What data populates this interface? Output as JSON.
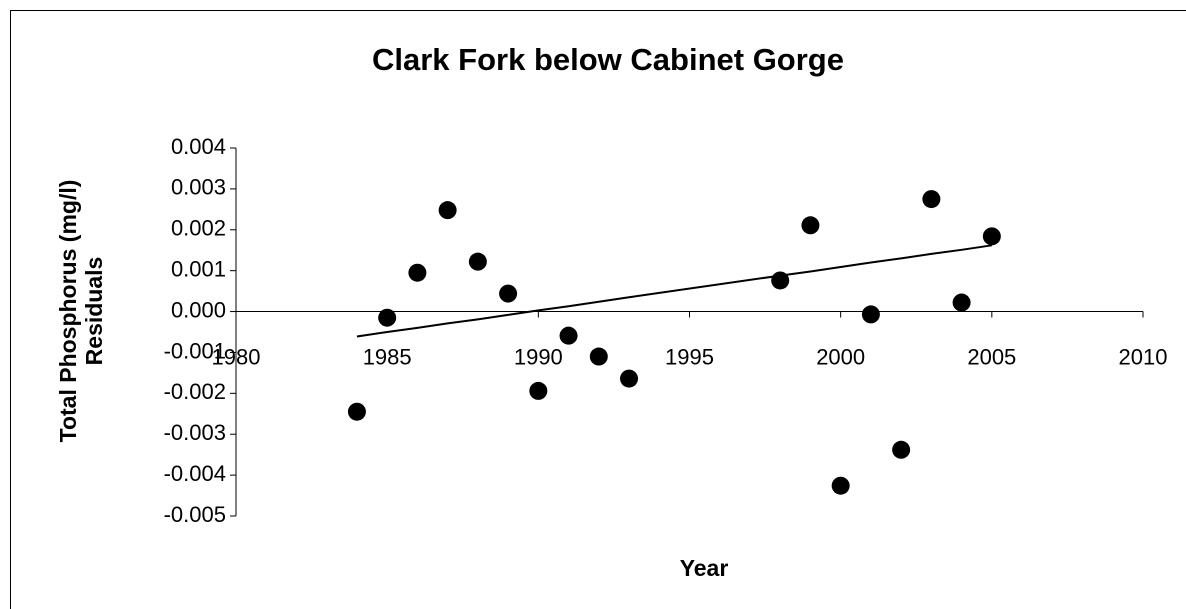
{
  "chart_data": {
    "type": "scatter",
    "title": "Clark Fork below Cabinet Gorge",
    "xlabel": "Year",
    "ylabel": [
      "Total Phosphorus (mg/l)",
      "Residuals"
    ],
    "x": [
      1984,
      1985,
      1986,
      1987,
      1988,
      1989,
      1990,
      1991,
      1992,
      1993,
      1998,
      1999,
      2000,
      2001,
      2002,
      2003,
      2004,
      2005
    ],
    "series": [
      {
        "style": "marker",
        "color": "#000000",
        "values": [
          -0.00245,
          -0.00015,
          0.00095,
          0.00248,
          0.00122,
          0.00044,
          -0.00194,
          -0.00059,
          -0.0011,
          -0.00164,
          0.00076,
          0.00211,
          -0.00426,
          -7e-05,
          -0.00338,
          0.00275,
          0.00022,
          0.00184
        ]
      },
      {
        "style": "line",
        "color": "#000000",
        "values": [
          -0.00061,
          -0.0005,
          -0.0004,
          -0.00029,
          -0.00019,
          -8e-05,
          3e-05,
          0.00013,
          0.00024,
          0.00035,
          0.00088,
          0.00098,
          0.00109,
          0.0012,
          0.0013,
          0.00141,
          0.00151,
          0.00162
        ]
      }
    ],
    "xlim": [
      1980,
      2010
    ],
    "xticks": [
      1980,
      1985,
      1990,
      1995,
      2000,
      2005,
      2010
    ],
    "ylim": [
      -0.005,
      0.004
    ],
    "yticks": [
      0.004,
      0.003,
      0.002,
      0.001,
      {
        "value": 0,
        "label": "0.000"
      },
      -0.001,
      -0.002,
      -0.003,
      -0.004,
      -0.005
    ]
  }
}
